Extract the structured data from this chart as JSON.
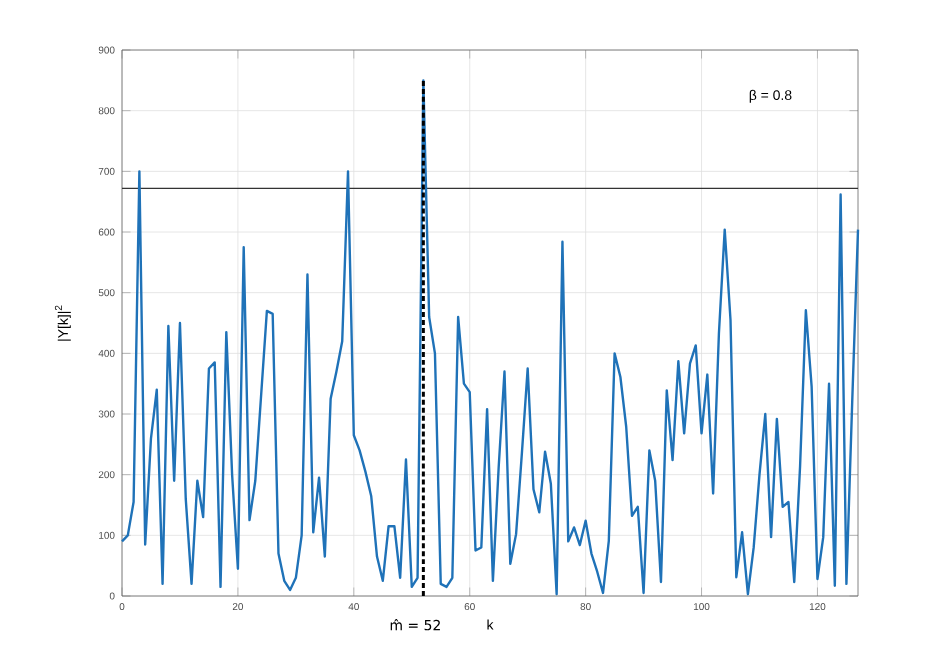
{
  "chart_data": {
    "type": "line",
    "xlabel": "k",
    "ylabel": "|Y[k]|$^{2}$",
    "x": [
      0,
      1,
      2,
      3,
      4,
      5,
      6,
      7,
      8,
      9,
      10,
      11,
      12,
      13,
      14,
      15,
      16,
      17,
      18,
      19,
      20,
      21,
      22,
      23,
      24,
      25,
      26,
      27,
      28,
      29,
      30,
      31,
      32,
      33,
      34,
      35,
      36,
      37,
      38,
      39,
      40,
      41,
      42,
      43,
      44,
      45,
      46,
      47,
      48,
      49,
      50,
      51,
      52,
      53,
      54,
      55,
      56,
      57,
      58,
      59,
      60,
      61,
      62,
      63,
      64,
      65,
      66,
      67,
      68,
      69,
      70,
      71,
      72,
      73,
      74,
      75,
      76,
      77,
      78,
      79,
      80,
      81,
      82,
      83,
      84,
      85,
      86,
      87,
      88,
      89,
      90,
      91,
      92,
      93,
      94,
      95,
      96,
      97,
      98,
      99,
      100,
      101,
      102,
      103,
      104,
      105,
      106,
      107,
      108,
      109,
      110,
      111,
      112,
      113,
      114,
      115,
      116,
      117,
      118,
      119,
      120,
      121,
      122,
      123,
      124,
      125,
      126,
      127
    ],
    "series": [
      {
        "color": "#1f72b8",
        "line_style": "solid",
        "values": [
          90,
          100,
          155,
          700,
          85,
          260,
          340,
          20,
          445,
          190,
          450,
          160,
          20,
          190,
          130,
          375,
          385,
          15,
          435,
          200,
          45,
          575,
          125,
          190,
          330,
          470,
          465,
          70,
          25,
          10,
          30,
          100,
          530,
          105,
          195,
          65,
          325,
          370,
          420,
          700,
          265,
          240,
          205,
          165,
          65,
          25,
          115,
          115,
          30,
          225,
          15,
          30,
          850,
          460,
          400,
          20,
          15,
          30,
          460,
          350,
          336,
          75,
          80,
          308,
          25,
          213,
          370,
          53,
          102,
          235,
          375,
          176,
          138,
          238,
          185,
          3,
          584,
          90,
          113,
          84,
          124,
          70,
          40,
          5,
          91,
          400,
          361,
          279,
          132,
          147,
          5,
          240,
          190,
          23,
          339,
          224,
          387,
          268,
          383,
          413,
          268,
          365,
          169,
          433,
          604,
          455,
          31,
          105,
          3,
          80,
          200,
          300,
          97,
          292,
          147,
          155,
          23,
          213,
          471,
          345,
          28,
          97,
          350,
          17,
          662,
          20,
          320,
          604
        ]
      },
      {
        "color": "#000000",
        "line_style": "dashed",
        "x": [
          52,
          52
        ],
        "values": [
          0,
          850
        ]
      }
    ],
    "ref_lines": [
      {
        "axis": "y",
        "value": 672,
        "color": "#333333"
      }
    ],
    "annotations": [
      {
        "text": "m̂ = 52",
        "x": 52,
        "y": 0
      },
      "β = 0.8"
    ],
    "xlim": [
      0,
      127
    ],
    "ylim": [
      0,
      900
    ],
    "xticks": [
      0,
      20,
      40,
      60,
      80,
      100,
      120
    ],
    "yticks": [
      0,
      100,
      200,
      300,
      400,
      500,
      600,
      700,
      800,
      900
    ],
    "grid": true
  }
}
